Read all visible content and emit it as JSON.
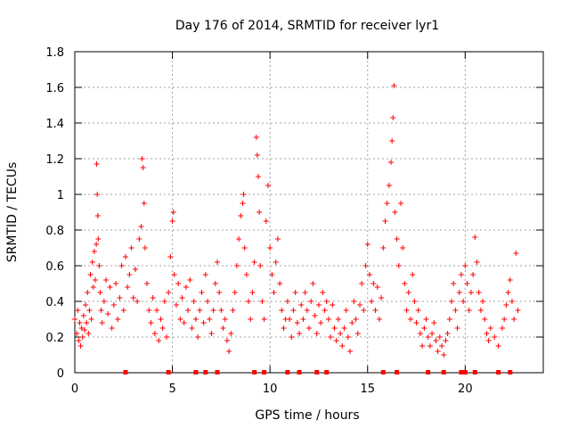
{
  "chart_data": {
    "type": "scatter",
    "title": "Day 176 of 2014, SRMTID for receiver lyr1",
    "xlabel": "GPS time / hours",
    "ylabel": "SRMTID / TECUs",
    "xlim": [
      0,
      24
    ],
    "ylim": [
      0,
      1.8
    ],
    "x_ticks": [
      0,
      5,
      10,
      15,
      20
    ],
    "y_ticks": [
      0,
      0.2,
      0.4,
      0.6,
      0.8,
      1,
      1.2,
      1.4,
      1.6,
      1.8
    ],
    "x_tick_labels": [
      "0",
      "5",
      "10",
      "15",
      "20"
    ],
    "y_tick_labels": [
      "0",
      "0.2",
      "0.4",
      "0.6",
      "0.8",
      "1",
      "1.2",
      "1.4",
      "1.6",
      "1.8"
    ],
    "grid": true,
    "marker": "plus",
    "color": "#ff0000",
    "baseline_markers_x": [
      2.6,
      4.8,
      6.2,
      6.7,
      7.3,
      9.2,
      9.7,
      10.9,
      11.5,
      12.4,
      12.9,
      15.8,
      16.5,
      18.1,
      18.9,
      19.8,
      20.0,
      20.5,
      21.7,
      22.3
    ],
    "series": [
      {
        "name": "SRMTID",
        "points": [
          [
            0.0,
            0.3
          ],
          [
            0.1,
            0.22
          ],
          [
            0.15,
            0.35
          ],
          [
            0.2,
            0.18
          ],
          [
            0.25,
            0.28
          ],
          [
            0.3,
            0.15
          ],
          [
            0.35,
            0.25
          ],
          [
            0.4,
            0.2
          ],
          [
            0.45,
            0.32
          ],
          [
            0.5,
            0.24
          ],
          [
            0.55,
            0.38
          ],
          [
            0.6,
            0.28
          ],
          [
            0.65,
            0.45
          ],
          [
            0.7,
            0.22
          ],
          [
            0.75,
            0.35
          ],
          [
            0.8,
            0.55
          ],
          [
            0.85,
            0.3
          ],
          [
            0.9,
            0.62
          ],
          [
            0.95,
            0.48
          ],
          [
            1.0,
            0.68
          ],
          [
            1.05,
            0.52
          ],
          [
            1.1,
            0.72
          ],
          [
            1.12,
            1.17
          ],
          [
            1.15,
            1.0
          ],
          [
            1.18,
            0.88
          ],
          [
            1.2,
            0.75
          ],
          [
            1.25,
            0.6
          ],
          [
            1.3,
            0.45
          ],
          [
            1.35,
            0.35
          ],
          [
            1.4,
            0.28
          ],
          [
            1.5,
            0.4
          ],
          [
            1.6,
            0.52
          ],
          [
            1.7,
            0.33
          ],
          [
            1.8,
            0.48
          ],
          [
            1.9,
            0.25
          ],
          [
            2.0,
            0.38
          ],
          [
            2.1,
            0.5
          ],
          [
            2.2,
            0.3
          ],
          [
            2.3,
            0.42
          ],
          [
            2.4,
            0.6
          ],
          [
            2.5,
            0.35
          ],
          [
            2.6,
            0.65
          ],
          [
            2.7,
            0.48
          ],
          [
            2.8,
            0.55
          ],
          [
            2.9,
            0.7
          ],
          [
            3.0,
            0.42
          ],
          [
            3.1,
            0.58
          ],
          [
            3.2,
            0.4
          ],
          [
            3.3,
            0.75
          ],
          [
            3.4,
            0.82
          ],
          [
            3.45,
            1.2
          ],
          [
            3.5,
            1.15
          ],
          [
            3.55,
            0.95
          ],
          [
            3.6,
            0.7
          ],
          [
            3.7,
            0.5
          ],
          [
            3.8,
            0.35
          ],
          [
            3.9,
            0.28
          ],
          [
            4.0,
            0.42
          ],
          [
            4.1,
            0.22
          ],
          [
            4.2,
            0.35
          ],
          [
            4.3,
            0.18
          ],
          [
            4.4,
            0.3
          ],
          [
            4.5,
            0.25
          ],
          [
            4.6,
            0.4
          ],
          [
            4.7,
            0.2
          ],
          [
            4.8,
            0.45
          ],
          [
            4.9,
            0.65
          ],
          [
            5.0,
            0.85
          ],
          [
            5.05,
            0.9
          ],
          [
            5.1,
            0.55
          ],
          [
            5.2,
            0.38
          ],
          [
            5.3,
            0.5
          ],
          [
            5.4,
            0.3
          ],
          [
            5.5,
            0.42
          ],
          [
            5.6,
            0.28
          ],
          [
            5.7,
            0.48
          ],
          [
            5.8,
            0.35
          ],
          [
            5.9,
            0.52
          ],
          [
            6.0,
            0.25
          ],
          [
            6.1,
            0.4
          ],
          [
            6.2,
            0.3
          ],
          [
            6.3,
            0.2
          ],
          [
            6.4,
            0.35
          ],
          [
            6.5,
            0.45
          ],
          [
            6.6,
            0.28
          ],
          [
            6.7,
            0.55
          ],
          [
            6.8,
            0.4
          ],
          [
            6.9,
            0.3
          ],
          [
            7.0,
            0.22
          ],
          [
            7.1,
            0.35
          ],
          [
            7.2,
            0.5
          ],
          [
            7.3,
            0.62
          ],
          [
            7.4,
            0.45
          ],
          [
            7.5,
            0.35
          ],
          [
            7.6,
            0.25
          ],
          [
            7.7,
            0.3
          ],
          [
            7.8,
            0.18
          ],
          [
            7.9,
            0.12
          ],
          [
            8.0,
            0.22
          ],
          [
            8.1,
            0.35
          ],
          [
            8.2,
            0.45
          ],
          [
            8.3,
            0.6
          ],
          [
            8.4,
            0.75
          ],
          [
            8.5,
            0.88
          ],
          [
            8.6,
            0.95
          ],
          [
            8.65,
            1.0
          ],
          [
            8.7,
            0.7
          ],
          [
            8.8,
            0.55
          ],
          [
            8.9,
            0.4
          ],
          [
            9.0,
            0.3
          ],
          [
            9.1,
            0.45
          ],
          [
            9.2,
            0.62
          ],
          [
            9.3,
            1.32
          ],
          [
            9.35,
            1.22
          ],
          [
            9.4,
            1.1
          ],
          [
            9.45,
            0.9
          ],
          [
            9.5,
            0.6
          ],
          [
            9.6,
            0.4
          ],
          [
            9.7,
            0.3
          ],
          [
            9.8,
            0.85
          ],
          [
            9.9,
            1.05
          ],
          [
            10.0,
            0.7
          ],
          [
            10.1,
            0.55
          ],
          [
            10.2,
            0.45
          ],
          [
            10.3,
            0.62
          ],
          [
            10.4,
            0.75
          ],
          [
            10.5,
            0.5
          ],
          [
            10.6,
            0.35
          ],
          [
            10.7,
            0.25
          ],
          [
            10.8,
            0.3
          ],
          [
            10.9,
            0.4
          ],
          [
            11.0,
            0.3
          ],
          [
            11.1,
            0.2
          ],
          [
            11.2,
            0.35
          ],
          [
            11.3,
            0.45
          ],
          [
            11.4,
            0.28
          ],
          [
            11.5,
            0.22
          ],
          [
            11.6,
            0.38
          ],
          [
            11.7,
            0.3
          ],
          [
            11.8,
            0.45
          ],
          [
            11.9,
            0.35
          ],
          [
            12.0,
            0.25
          ],
          [
            12.1,
            0.4
          ],
          [
            12.2,
            0.5
          ],
          [
            12.3,
            0.32
          ],
          [
            12.4,
            0.22
          ],
          [
            12.5,
            0.38
          ],
          [
            12.6,
            0.28
          ],
          [
            12.7,
            0.45
          ],
          [
            12.8,
            0.35
          ],
          [
            12.9,
            0.4
          ],
          [
            13.0,
            0.3
          ],
          [
            13.1,
            0.2
          ],
          [
            13.2,
            0.38
          ],
          [
            13.3,
            0.25
          ],
          [
            13.4,
            0.18
          ],
          [
            13.5,
            0.3
          ],
          [
            13.6,
            0.22
          ],
          [
            13.7,
            0.15
          ],
          [
            13.8,
            0.25
          ],
          [
            13.9,
            0.35
          ],
          [
            14.0,
            0.2
          ],
          [
            14.1,
            0.12
          ],
          [
            14.2,
            0.28
          ],
          [
            14.3,
            0.4
          ],
          [
            14.4,
            0.3
          ],
          [
            14.5,
            0.22
          ],
          [
            14.6,
            0.38
          ],
          [
            14.7,
            0.5
          ],
          [
            14.8,
            0.35
          ],
          [
            14.9,
            0.6
          ],
          [
            15.0,
            0.72
          ],
          [
            15.1,
            0.55
          ],
          [
            15.2,
            0.4
          ],
          [
            15.3,
            0.5
          ],
          [
            15.4,
            0.35
          ],
          [
            15.5,
            0.48
          ],
          [
            15.6,
            0.3
          ],
          [
            15.7,
            0.42
          ],
          [
            15.8,
            0.7
          ],
          [
            15.9,
            0.85
          ],
          [
            16.0,
            0.95
          ],
          [
            16.1,
            1.05
          ],
          [
            16.2,
            1.18
          ],
          [
            16.25,
            1.3
          ],
          [
            16.3,
            1.43
          ],
          [
            16.35,
            1.61
          ],
          [
            16.4,
            0.9
          ],
          [
            16.5,
            0.75
          ],
          [
            16.6,
            0.6
          ],
          [
            16.7,
            0.95
          ],
          [
            16.8,
            0.7
          ],
          [
            16.9,
            0.5
          ],
          [
            17.0,
            0.35
          ],
          [
            17.1,
            0.45
          ],
          [
            17.2,
            0.3
          ],
          [
            17.3,
            0.55
          ],
          [
            17.4,
            0.4
          ],
          [
            17.5,
            0.28
          ],
          [
            17.6,
            0.35
          ],
          [
            17.7,
            0.22
          ],
          [
            17.8,
            0.15
          ],
          [
            17.9,
            0.25
          ],
          [
            18.0,
            0.3
          ],
          [
            18.1,
            0.2
          ],
          [
            18.2,
            0.15
          ],
          [
            18.3,
            0.22
          ],
          [
            18.4,
            0.28
          ],
          [
            18.5,
            0.18
          ],
          [
            18.6,
            0.12
          ],
          [
            18.7,
            0.2
          ],
          [
            18.8,
            0.15
          ],
          [
            18.9,
            0.1
          ],
          [
            19.0,
            0.18
          ],
          [
            19.1,
            0.22
          ],
          [
            19.2,
            0.3
          ],
          [
            19.3,
            0.4
          ],
          [
            19.4,
            0.5
          ],
          [
            19.5,
            0.35
          ],
          [
            19.6,
            0.25
          ],
          [
            19.7,
            0.45
          ],
          [
            19.8,
            0.55
          ],
          [
            19.9,
            0.4
          ],
          [
            20.0,
            0.6
          ],
          [
            20.1,
            0.5
          ],
          [
            20.2,
            0.35
          ],
          [
            20.3,
            0.45
          ],
          [
            20.4,
            0.55
          ],
          [
            20.5,
            0.76
          ],
          [
            20.6,
            0.62
          ],
          [
            20.7,
            0.45
          ],
          [
            20.8,
            0.35
          ],
          [
            20.9,
            0.4
          ],
          [
            21.0,
            0.3
          ],
          [
            21.1,
            0.22
          ],
          [
            21.2,
            0.18
          ],
          [
            21.3,
            0.25
          ],
          [
            21.5,
            0.2
          ],
          [
            21.7,
            0.15
          ],
          [
            21.9,
            0.25
          ],
          [
            22.0,
            0.3
          ],
          [
            22.1,
            0.38
          ],
          [
            22.2,
            0.45
          ],
          [
            22.3,
            0.52
          ],
          [
            22.4,
            0.4
          ],
          [
            22.5,
            0.3
          ],
          [
            22.6,
            0.67
          ],
          [
            22.7,
            0.35
          ]
        ]
      }
    ]
  }
}
